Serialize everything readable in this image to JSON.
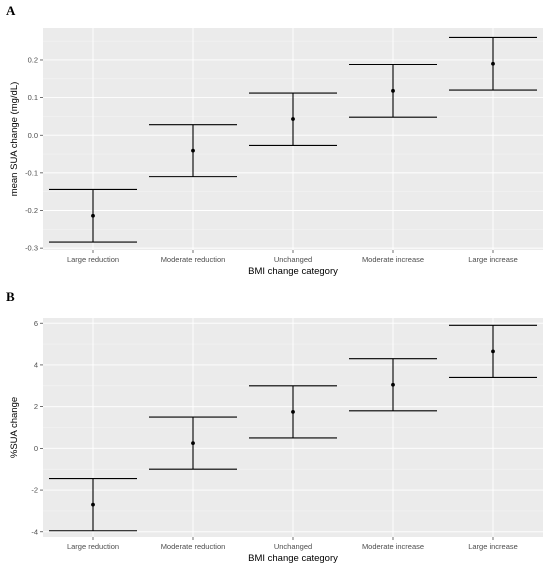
{
  "panel_labels": [
    "A",
    "B"
  ],
  "chart_data": [
    {
      "type": "errorbar",
      "panel": "A",
      "categories": [
        "Large reduction",
        "Moderate reduction",
        "Unchanged",
        "Moderate increase",
        "Large increase"
      ],
      "mean": [
        -0.214,
        -0.041,
        0.043,
        0.118,
        0.19
      ],
      "lower": [
        -0.284,
        -0.11,
        -0.027,
        0.048,
        0.12
      ],
      "upper": [
        -0.144,
        0.028,
        0.112,
        0.188,
        0.26
      ],
      "yticks": [
        -0.3,
        -0.2,
        -0.1,
        0.0,
        0.1,
        0.2
      ],
      "ytick_labels": [
        "-0.3",
        "-0.2",
        "-0.1",
        "0.0",
        "0.1",
        "0.2"
      ],
      "ylim": [
        -0.305,
        0.285
      ],
      "xlabel": "BMI change category",
      "ylabel": "mean SUA change (mg/dL)",
      "grid": true
    },
    {
      "type": "errorbar",
      "panel": "B",
      "categories": [
        "Large reduction",
        "Moderate reduction",
        "Unchanged",
        "Moderate increase",
        "Large increase"
      ],
      "mean": [
        -2.7,
        0.25,
        1.75,
        3.05,
        4.65
      ],
      "lower": [
        -3.95,
        -1.0,
        0.5,
        1.8,
        3.4
      ],
      "upper": [
        -1.45,
        1.5,
        3.0,
        4.3,
        5.9
      ],
      "yticks": [
        -4,
        -2,
        0,
        2,
        4,
        6
      ],
      "ytick_labels": [
        "-4",
        "-2",
        "0",
        "2",
        "4",
        "6"
      ],
      "ylim": [
        -4.25,
        6.25
      ],
      "xlabel": "BMI change category",
      "ylabel": "%SUA change",
      "grid": true
    }
  ]
}
